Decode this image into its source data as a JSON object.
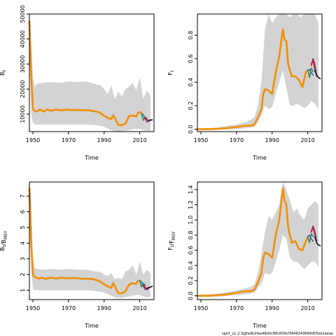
{
  "footer_text": "spict_v1.2.3@fa0b2fae48d0c88c609cf3846343899d55eb2eeae",
  "colors": {
    "band": "#d3d3d3",
    "frame": "#000000",
    "series": [
      "#f28e00",
      "#3c8c4a",
      "#3b5fbf",
      "#1f9ea0",
      "#7a2f8a",
      "#d62020",
      "#111111"
    ]
  },
  "chart_data": [
    {
      "type": "line",
      "title": "",
      "xlabel": "Time",
      "ylabel": "B_t",
      "xlim": [
        1948,
        2018
      ],
      "ylim": [
        3000,
        50000
      ],
      "xticks": [
        "1950",
        "1970",
        "1990",
        "2010"
      ],
      "yticks": [
        "10000",
        "20000",
        "30000",
        "40000",
        "50000"
      ],
      "grid": false,
      "band": {
        "x": [
          1948,
          1949,
          1950,
          1951,
          1952,
          1955,
          1960,
          1965,
          1970,
          1975,
          1980,
          1985,
          1988,
          1990,
          1992,
          1994,
          1996,
          1998,
          2000,
          2002,
          2004,
          2006,
          2008,
          2010,
          2012,
          2014,
          2016
        ],
        "lower": [
          45000,
          10000,
          6500,
          6000,
          5800,
          5800,
          5800,
          5800,
          5800,
          5800,
          5800,
          5600,
          5300,
          4900,
          4200,
          3600,
          3200,
          3100,
          3200,
          3300,
          3600,
          3900,
          4100,
          4100,
          3600,
          3300,
          3300
        ],
        "upper": [
          50000,
          40000,
          25000,
          21000,
          22000,
          22500,
          22800,
          22500,
          23000,
          22800,
          23000,
          22000,
          21500,
          20000,
          18000,
          21500,
          16000,
          19000,
          17000,
          20000,
          21000,
          22500,
          19500,
          24500,
          16000,
          19500,
          17500
        ]
      },
      "series": [
        {
          "x": [
            1948,
            1949,
            1950,
            1951,
            1952,
            1954,
            1956,
            1958,
            1960,
            1963,
            1966,
            1969,
            1972,
            1975,
            1978,
            1981,
            1984,
            1987,
            1989,
            1991,
            1993,
            1994,
            1995,
            1996,
            1997,
            1998,
            2000,
            2002,
            2004,
            2006,
            2008,
            2009,
            2010,
            2011
          ],
          "values": [
            47000,
            25000,
            12000,
            11300,
            11000,
            11800,
            11000,
            11900,
            11300,
            11800,
            11500,
            11800,
            11600,
            11700,
            11500,
            11600,
            11200,
            10800,
            9800,
            8900,
            8200,
            8000,
            9500,
            8500,
            7000,
            5700,
            5600,
            6200,
            9200,
            9400,
            9000,
            10500,
            10800,
            10200
          ]
        },
        {
          "x": [
            2011,
            2012,
            2013,
            2014
          ],
          "values": [
            10200,
            7500,
            8800,
            8000
          ]
        },
        {
          "x": [
            2011,
            2012,
            2013,
            2014
          ],
          "values": [
            10200,
            9800,
            8000,
            8400
          ]
        },
        {
          "x": [
            2011,
            2012,
            2013
          ],
          "values": [
            10200,
            9500,
            8700
          ]
        },
        {
          "x": [
            2013,
            2014,
            2015,
            2016
          ],
          "values": [
            8500,
            6900,
            7200,
            7800
          ]
        },
        {
          "x": [
            2013,
            2014,
            2015
          ],
          "values": [
            8800,
            7900,
            7300
          ]
        },
        {
          "x": [
            2015,
            2016,
            2017
          ],
          "values": [
            7300,
            7600,
            7700
          ]
        }
      ]
    },
    {
      "type": "line",
      "title": "",
      "xlabel": "Time",
      "ylabel": "F_t",
      "xlim": [
        1948,
        2018
      ],
      "ylim": [
        -0.02,
        0.98
      ],
      "xticks": [
        "1950",
        "1970",
        "1990",
        "2010"
      ],
      "yticks": [
        "0.0",
        "0.2",
        "0.4",
        "0.6",
        "0.8"
      ],
      "grid": false,
      "band": {
        "x": [
          1950,
          1955,
          1960,
          1965,
          1970,
          1975,
          1978,
          1980,
          1982,
          1984,
          1986,
          1988,
          1990,
          1992,
          1994,
          1996,
          1998,
          2000,
          2002,
          2004,
          2006,
          2008,
          2010,
          2012,
          2014,
          2016
        ],
        "lower": [
          -0.005,
          -0.005,
          -0.005,
          0.0,
          0.0,
          0.01,
          0.015,
          0.02,
          0.06,
          0.12,
          0.2,
          0.17,
          0.19,
          0.3,
          0.4,
          0.5,
          0.35,
          0.2,
          0.2,
          0.22,
          0.2,
          0.18,
          0.2,
          0.24,
          0.22,
          0.17
        ],
        "upper": [
          0.01,
          0.01,
          0.015,
          0.03,
          0.04,
          0.06,
          0.08,
          0.1,
          0.2,
          0.4,
          0.85,
          0.98,
          0.9,
          0.95,
          0.98,
          0.98,
          0.98,
          0.95,
          0.98,
          0.98,
          0.95,
          0.98,
          0.98,
          0.98,
          0.98,
          0.9
        ]
      },
      "series": [
        {
          "x": [
            1948,
            1955,
            1960,
            1965,
            1970,
            1975,
            1978,
            1980,
            1982,
            1984,
            1985,
            1986,
            1988,
            1990,
            1992,
            1994,
            1996,
            1997,
            1998,
            1999,
            2001,
            2003,
            2005,
            2007,
            2009,
            2010
          ],
          "values": [
            0.0,
            0.0,
            0.005,
            0.01,
            0.02,
            0.03,
            0.03,
            0.04,
            0.1,
            0.17,
            0.3,
            0.34,
            0.33,
            0.3,
            0.48,
            0.62,
            0.85,
            0.76,
            0.75,
            0.55,
            0.45,
            0.45,
            0.42,
            0.36,
            0.49,
            0.5
          ]
        },
        {
          "x": [
            2010,
            2011,
            2012,
            2013
          ],
          "values": [
            0.5,
            0.44,
            0.52,
            0.49
          ]
        },
        {
          "x": [
            2010,
            2011,
            2012,
            2013
          ],
          "values": [
            0.5,
            0.51,
            0.48,
            0.46
          ]
        },
        {
          "x": [
            2012,
            2013,
            2014
          ],
          "values": [
            0.56,
            0.58,
            0.5
          ]
        },
        {
          "x": [
            2012,
            2013,
            2014,
            2015
          ],
          "values": [
            0.55,
            0.6,
            0.55,
            0.45
          ]
        },
        {
          "x": [
            2012,
            2013,
            2014
          ],
          "values": [
            0.54,
            0.59,
            0.52
          ]
        },
        {
          "x": [
            2014,
            2015,
            2016,
            2017
          ],
          "values": [
            0.5,
            0.46,
            0.44,
            0.43
          ]
        }
      ]
    },
    {
      "type": "line",
      "title": "",
      "xlabel": "Time",
      "ylabel": "B_t/B_MSY",
      "xlim": [
        1948,
        2018
      ],
      "ylim": [
        0.4,
        7.9
      ],
      "xticks": [
        "1950",
        "1970",
        "1990",
        "2010"
      ],
      "yticks": [
        "1",
        "2",
        "3",
        "4",
        "5",
        "6",
        "7"
      ],
      "grid": false,
      "band": {
        "x": [
          1948,
          1949,
          1950,
          1951,
          1955,
          1960,
          1965,
          1970,
          1975,
          1980,
          1985,
          1988,
          1990,
          1992,
          1994,
          1996,
          1998,
          2000,
          2002,
          2004,
          2006,
          2008,
          2010,
          2012,
          2014,
          2016
        ],
        "lower": [
          7.3,
          2.5,
          1.05,
          1.0,
          1.0,
          1.0,
          1.0,
          1.0,
          1.0,
          1.0,
          0.95,
          0.9,
          0.85,
          0.75,
          0.65,
          0.55,
          0.5,
          0.5,
          0.55,
          0.6,
          0.65,
          0.7,
          0.7,
          0.6,
          0.55,
          0.55
        ],
        "upper": [
          7.8,
          7.0,
          3.0,
          2.4,
          2.3,
          2.35,
          2.3,
          2.35,
          2.3,
          2.3,
          2.2,
          2.15,
          2.0,
          1.9,
          2.1,
          1.7,
          1.8,
          1.7,
          2.2,
          2.3,
          2.6,
          2.0,
          2.8,
          2.0,
          2.3,
          2.1
        ]
      },
      "series": [
        {
          "x": [
            1948,
            1949,
            1950,
            1951,
            1953,
            1955,
            1957,
            1960,
            1963,
            1966,
            1969,
            1972,
            1975,
            1978,
            1981,
            1984,
            1987,
            1989,
            1991,
            1993,
            1994,
            1995,
            1996,
            1997,
            1998,
            2000,
            2002,
            2004,
            2006,
            2008,
            2009,
            2010
          ],
          "values": [
            7.5,
            4.0,
            1.95,
            1.85,
            1.75,
            1.8,
            1.72,
            1.8,
            1.75,
            1.8,
            1.76,
            1.78,
            1.76,
            1.72,
            1.74,
            1.7,
            1.6,
            1.45,
            1.3,
            1.2,
            1.15,
            1.45,
            1.25,
            1.0,
            0.8,
            0.8,
            0.95,
            1.35,
            1.45,
            1.4,
            1.6,
            1.6
          ]
        },
        {
          "x": [
            2010,
            2011,
            2012,
            2013
          ],
          "values": [
            1.6,
            1.2,
            1.45,
            1.3
          ]
        },
        {
          "x": [
            2010,
            2011,
            2012,
            2013
          ],
          "values": [
            1.6,
            1.55,
            1.25,
            1.35
          ]
        },
        {
          "x": [
            2010,
            2011,
            2012
          ],
          "values": [
            1.6,
            1.5,
            1.35
          ]
        },
        {
          "x": [
            2012,
            2013,
            2014,
            2015
          ],
          "values": [
            1.3,
            1.05,
            1.1,
            1.2
          ]
        },
        {
          "x": [
            2012,
            2013,
            2014
          ],
          "values": [
            1.35,
            1.2,
            1.1
          ]
        },
        {
          "x": [
            2014,
            2015,
            2016,
            2017
          ],
          "values": [
            1.05,
            1.15,
            1.2,
            1.25
          ]
        }
      ]
    },
    {
      "type": "line",
      "title": "",
      "xlabel": "Time",
      "ylabel": "F_t/F_MSY",
      "xlim": [
        1948,
        2018
      ],
      "ylim": [
        -0.05,
        1.5
      ],
      "xticks": [
        "1950",
        "1970",
        "1990",
        "2010"
      ],
      "yticks": [
        "0.0",
        "0.2",
        "0.4",
        "0.6",
        "0.8",
        "1.0",
        "1.2",
        "1.4"
      ],
      "grid": false,
      "band": {
        "x": [
          1950,
          1955,
          1960,
          1965,
          1970,
          1975,
          1978,
          1980,
          1982,
          1984,
          1986,
          1988,
          1990,
          1992,
          1994,
          1996,
          1998,
          2000,
          2002,
          2004,
          2006,
          2008,
          2010,
          2012,
          2014,
          2016
        ],
        "lower": [
          -0.01,
          -0.01,
          -0.01,
          0.0,
          0.01,
          0.02,
          0.03,
          0.04,
          0.1,
          0.16,
          0.3,
          0.28,
          0.3,
          0.45,
          0.6,
          0.8,
          0.75,
          0.5,
          0.45,
          0.45,
          0.4,
          0.35,
          0.4,
          0.45,
          0.45,
          0.38
        ],
        "upper": [
          0.02,
          0.02,
          0.03,
          0.05,
          0.07,
          0.1,
          0.12,
          0.15,
          0.3,
          0.55,
          0.85,
          1.05,
          1.0,
          1.1,
          1.2,
          1.5,
          1.4,
          1.25,
          1.1,
          1.15,
          1.05,
          1.0,
          1.15,
          1.2,
          1.25,
          1.2
        ]
      },
      "series": [
        {
          "x": [
            1948,
            1955,
            1960,
            1965,
            1970,
            1975,
            1978,
            1980,
            1982,
            1984,
            1985,
            1986,
            1988,
            1990,
            1992,
            1994,
            1996,
            1997,
            1998,
            1999,
            2001,
            2003,
            2005,
            2007,
            2009,
            2010
          ],
          "values": [
            0.0,
            0.0,
            0.01,
            0.02,
            0.04,
            0.06,
            0.06,
            0.08,
            0.18,
            0.3,
            0.5,
            0.57,
            0.55,
            0.5,
            0.8,
            1.0,
            1.42,
            1.25,
            1.2,
            0.9,
            0.7,
            0.72,
            0.62,
            0.6,
            0.72,
            0.78
          ]
        },
        {
          "x": [
            2010,
            2011,
            2012,
            2013
          ],
          "values": [
            0.78,
            0.7,
            0.82,
            0.78
          ]
        },
        {
          "x": [
            2010,
            2011,
            2012,
            2013
          ],
          "values": [
            0.78,
            0.8,
            0.75,
            0.72
          ]
        },
        {
          "x": [
            2012,
            2013,
            2014
          ],
          "values": [
            0.86,
            0.9,
            0.82
          ]
        },
        {
          "x": [
            2012,
            2013,
            2014,
            2015
          ],
          "values": [
            0.85,
            0.92,
            0.85,
            0.72
          ]
        },
        {
          "x": [
            2012,
            2013,
            2014
          ],
          "values": [
            0.84,
            0.9,
            0.8
          ]
        },
        {
          "x": [
            2014,
            2015,
            2016,
            2017
          ],
          "values": [
            0.78,
            0.7,
            0.67,
            0.66
          ]
        }
      ]
    }
  ]
}
